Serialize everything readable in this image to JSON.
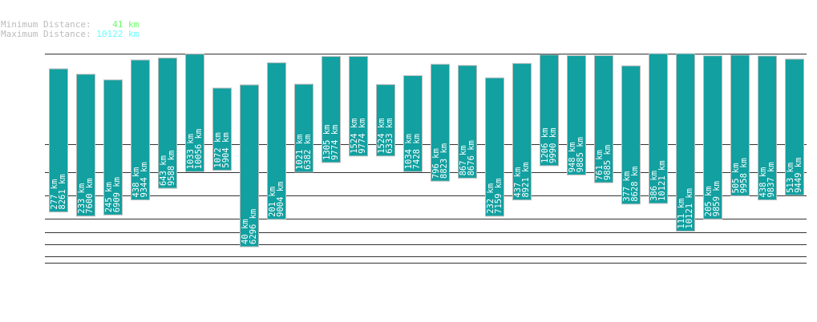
{
  "header": {
    "min_label": "Minimum Distance:",
    "min_value": "41 km",
    "min_color": "#66ff66",
    "max_label": "Maximum Distance:",
    "max_value": "10122 km",
    "max_color": "#66ffff"
  },
  "chart_data": {
    "type": "bar",
    "subtype": "floating-range",
    "bar_color": "#12a0a0",
    "unit": "km",
    "series": [
      {
        "name": "min",
        "values": [
          277,
          233,
          245,
          438,
          643,
          1033,
          1072,
          40,
          201,
          1021,
          1305,
          1524,
          1524,
          1034,
          796,
          867,
          232,
          437,
          1206,
          948,
          761,
          377,
          386,
          111,
          205,
          505,
          438,
          513
        ]
      },
      {
        "name": "max",
        "values": [
          8261,
          7600,
          6909,
          9344,
          9588,
          10056,
          5904,
          6296,
          9004,
          6382,
          9774,
          9774,
          6333,
          7428,
          8823,
          8676,
          7159,
          8921,
          9990,
          9885,
          9885,
          8628,
          10121,
          10121,
          9859,
          9958,
          9837,
          9449
        ]
      }
    ],
    "grid": true
  }
}
